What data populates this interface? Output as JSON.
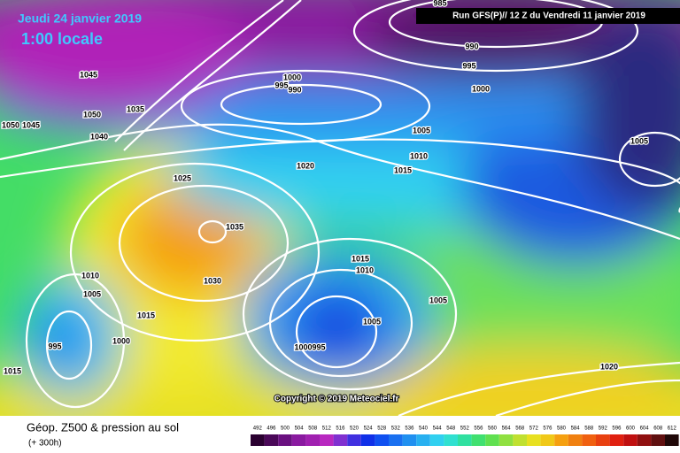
{
  "header": {
    "date": "Jeudi 24 janvier 2019",
    "time": "1:00 locale",
    "run": "Run GFS(P)// 12 Z du Vendredi 11 janvier 2019"
  },
  "copyright": "Copyright © 2019 Meteociel.fr",
  "footer": {
    "title": "Géop. Z500 & pression au sol",
    "lead": "(+ 300h)"
  },
  "colorbar": {
    "labels": [
      "492",
      "496",
      "500",
      "504",
      "508",
      "512",
      "516",
      "520",
      "524",
      "528",
      "532",
      "536",
      "540",
      "544",
      "548",
      "552",
      "556",
      "560",
      "564",
      "568",
      "572",
      "576",
      "580",
      "584",
      "588",
      "592",
      "596",
      "600",
      "604",
      "608",
      "612"
    ]
  },
  "isobars": {
    "labels": [
      "1045",
      "1050",
      "1035",
      "1040",
      "1050",
      "1045",
      "1000",
      "995",
      "990",
      "985",
      "990",
      "995",
      "1000",
      "1005",
      "1010",
      "1015",
      "1020",
      "1025",
      "1035",
      "1030",
      "1015",
      "1010",
      "1005",
      "1005",
      "1000995",
      "1010",
      "1005",
      "1015",
      "1000",
      "995",
      "1015",
      "1020",
      "1005"
    ]
  }
}
